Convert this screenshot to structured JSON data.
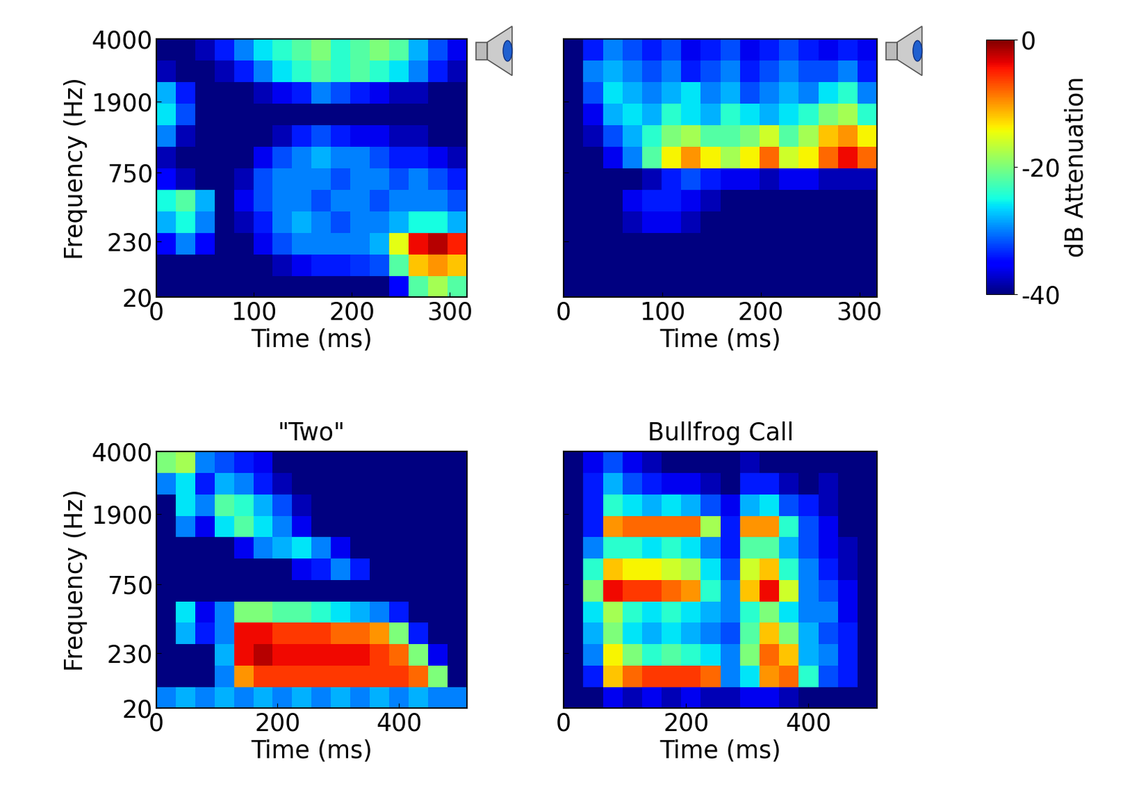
{
  "chart_data": [
    {
      "type": "heatmap",
      "x_label": "Time (ms)",
      "y_label": "Frequency (Hz)",
      "xlim": [
        0,
        318
      ],
      "ylim": [
        20,
        4000
      ],
      "xticks": [
        0,
        100,
        200,
        300
      ],
      "yticks": [
        20,
        230,
        750,
        1900,
        4000
      ],
      "cells": [
        [
          -40,
          -40,
          -40,
          -40,
          -40,
          -40,
          -40,
          -40,
          -40,
          -40,
          -40,
          -40,
          -35,
          -22,
          -18,
          -22
        ],
        [
          -40,
          -40,
          -40,
          -40,
          -40,
          -40,
          -38,
          -36,
          -34,
          -34,
          -33,
          -32,
          -22,
          -12,
          -10,
          -12
        ],
        [
          -35,
          -30,
          -35,
          -40,
          -40,
          -36,
          -32,
          -30,
          -30,
          -30,
          -30,
          -28,
          -15,
          -4,
          -2,
          -5
        ],
        [
          -28,
          -25,
          -30,
          -40,
          -38,
          -34,
          -30,
          -28,
          -30,
          -32,
          -30,
          -30,
          -28,
          -25,
          -25,
          -28
        ],
        [
          -25,
          -22,
          -28,
          -40,
          -36,
          -32,
          -30,
          -30,
          -32,
          -30,
          -30,
          -32,
          -30,
          -30,
          -30,
          -32
        ],
        [
          -35,
          -38,
          -40,
          -40,
          -38,
          -32,
          -30,
          -30,
          -30,
          -32,
          -30,
          -30,
          -32,
          -30,
          -32,
          -34
        ],
        [
          -38,
          -40,
          -40,
          -40,
          -40,
          -36,
          -32,
          -30,
          -28,
          -30,
          -30,
          -32,
          -34,
          -34,
          -36,
          -38
        ],
        [
          -30,
          -38,
          -40,
          -40,
          -40,
          -40,
          -38,
          -34,
          -32,
          -34,
          -36,
          -36,
          -38,
          -38,
          -40,
          -40
        ],
        [
          -26,
          -32,
          -40,
          -40,
          -40,
          -40,
          -40,
          -40,
          -40,
          -40,
          -40,
          -40,
          -40,
          -40,
          -40,
          -40
        ],
        [
          -28,
          -34,
          -40,
          -40,
          -40,
          -38,
          -36,
          -34,
          -30,
          -32,
          -34,
          -36,
          -38,
          -38,
          -40,
          -40
        ],
        [
          -38,
          -40,
          -40,
          -38,
          -34,
          -30,
          -26,
          -24,
          -22,
          -24,
          -22,
          -24,
          -26,
          -30,
          -34,
          -38
        ],
        [
          -40,
          -40,
          -38,
          -34,
          -30,
          -26,
          -24,
          -22,
          -20,
          -24,
          -22,
          -20,
          -22,
          -28,
          -32,
          -36
        ]
      ]
    },
    {
      "type": "heatmap",
      "x_label": "Time (ms)",
      "tick_labels": "x",
      "xlim": [
        0,
        318
      ],
      "ylim": [
        20,
        4000
      ],
      "xticks": [
        0,
        100,
        200,
        300
      ],
      "yticks": [
        20,
        230,
        750,
        1900,
        4000
      ],
      "cells": [
        [
          -40,
          -40,
          -40,
          -40,
          -40,
          -40,
          -40,
          -40,
          -40,
          -40,
          -40,
          -40,
          -40,
          -40,
          -40,
          -40
        ],
        [
          -40,
          -40,
          -40,
          -40,
          -40,
          -40,
          -40,
          -40,
          -40,
          -40,
          -40,
          -40,
          -40,
          -40,
          -40,
          -40
        ],
        [
          -40,
          -40,
          -40,
          -40,
          -40,
          -40,
          -40,
          -40,
          -40,
          -40,
          -40,
          -40,
          -40,
          -40,
          -40,
          -40
        ],
        [
          -40,
          -40,
          -40,
          -38,
          -36,
          -36,
          -38,
          -40,
          -40,
          -40,
          -40,
          -40,
          -40,
          -40,
          -40,
          -40
        ],
        [
          -40,
          -40,
          -40,
          -36,
          -34,
          -34,
          -36,
          -38,
          -40,
          -40,
          -40,
          -40,
          -40,
          -40,
          -40,
          -40
        ],
        [
          -40,
          -40,
          -40,
          -40,
          -38,
          -34,
          -32,
          -34,
          -36,
          -36,
          -38,
          -36,
          -36,
          -38,
          -38,
          -38
        ],
        [
          -40,
          -40,
          -36,
          -30,
          -22,
          -14,
          -10,
          -14,
          -18,
          -14,
          -8,
          -16,
          -14,
          -8,
          -4,
          -8
        ],
        [
          -40,
          -38,
          -32,
          -28,
          -24,
          -20,
          -18,
          -22,
          -22,
          -20,
          -16,
          -22,
          -18,
          -12,
          -10,
          -14
        ],
        [
          -40,
          -36,
          -28,
          -26,
          -28,
          -24,
          -26,
          -28,
          -24,
          -26,
          -28,
          -26,
          -24,
          -20,
          -18,
          -24
        ],
        [
          -40,
          -32,
          -26,
          -28,
          -30,
          -28,
          -26,
          -30,
          -28,
          -32,
          -30,
          -28,
          -30,
          -26,
          -24,
          -30
        ],
        [
          -40,
          -30,
          -28,
          -30,
          -32,
          -30,
          -34,
          -32,
          -30,
          -34,
          -32,
          -30,
          -32,
          -32,
          -30,
          -34
        ],
        [
          -40,
          -34,
          -30,
          -32,
          -34,
          -32,
          -36,
          -34,
          -32,
          -36,
          -34,
          -32,
          -34,
          -36,
          -34,
          -36
        ]
      ]
    },
    {
      "type": "heatmap",
      "title": "\"Two\"",
      "x_label": "Time (ms)",
      "y_label": "Frequency (Hz)",
      "xlim": [
        0,
        512
      ],
      "ylim": [
        20,
        4000
      ],
      "xticks": [
        0,
        200,
        400
      ],
      "yticks": [
        20,
        230,
        750,
        1900,
        4000
      ],
      "cells": [
        [
          -30,
          -28,
          -30,
          -28,
          -30,
          -28,
          -30,
          -28,
          -30,
          -28,
          -30,
          -28,
          -30,
          -28,
          -30,
          -30
        ],
        [
          -40,
          -40,
          -40,
          -30,
          -10,
          -6,
          -6,
          -6,
          -6,
          -6,
          -6,
          -6,
          -6,
          -8,
          -20,
          -40
        ],
        [
          -40,
          -40,
          -40,
          -28,
          -4,
          -2,
          -4,
          -4,
          -4,
          -4,
          -4,
          -6,
          -8,
          -20,
          -36,
          -40
        ],
        [
          -40,
          -28,
          -34,
          -30,
          -4,
          -4,
          -6,
          -6,
          -6,
          -8,
          -8,
          -10,
          -20,
          -34,
          -40,
          -40
        ],
        [
          -40,
          -26,
          -36,
          -30,
          -20,
          -20,
          -22,
          -22,
          -24,
          -26,
          -28,
          -30,
          -34,
          -40,
          -40,
          -40
        ],
        [
          -40,
          -40,
          -40,
          -40,
          -40,
          -40,
          -40,
          -40,
          -40,
          -40,
          -40,
          -40,
          -40,
          -40,
          -40,
          -40
        ],
        [
          -40,
          -40,
          -40,
          -40,
          -40,
          -40,
          -40,
          -36,
          -34,
          -30,
          -34,
          -40,
          -40,
          -40,
          -40,
          -40
        ],
        [
          -40,
          -40,
          -40,
          -40,
          -36,
          -30,
          -28,
          -26,
          -30,
          -36,
          -40,
          -40,
          -40,
          -40,
          -40,
          -40
        ],
        [
          -40,
          -30,
          -36,
          -26,
          -22,
          -26,
          -30,
          -36,
          -40,
          -40,
          -40,
          -40,
          -40,
          -40,
          -40,
          -40
        ],
        [
          -40,
          -26,
          -30,
          -22,
          -24,
          -28,
          -32,
          -38,
          -40,
          -40,
          -40,
          -40,
          -40,
          -40,
          -40,
          -40
        ],
        [
          -30,
          -26,
          -34,
          -28,
          -30,
          -34,
          -38,
          -40,
          -40,
          -40,
          -40,
          -40,
          -40,
          -40,
          -40,
          -40
        ],
        [
          -20,
          -18,
          -30,
          -32,
          -34,
          -36,
          -40,
          -40,
          -40,
          -40,
          -40,
          -40,
          -40,
          -40,
          -40,
          -40
        ]
      ]
    },
    {
      "type": "heatmap",
      "title": "Bullfrog Call",
      "x_label": "Time (ms)",
      "tick_labels": "x",
      "xlim": [
        0,
        512
      ],
      "ylim": [
        20,
        4000
      ],
      "xticks": [
        0,
        200,
        400
      ],
      "yticks": [
        20,
        230,
        750,
        1900,
        4000
      ],
      "cells": [
        [
          -40,
          -40,
          -36,
          -38,
          -36,
          -38,
          -36,
          -38,
          -38,
          -36,
          -36,
          -38,
          -40,
          -40,
          -40,
          -40
        ],
        [
          -40,
          -34,
          -12,
          -8,
          -6,
          -6,
          -6,
          -8,
          -30,
          -26,
          -10,
          -8,
          -24,
          -32,
          -34,
          -40
        ],
        [
          -40,
          -30,
          -14,
          -20,
          -24,
          -22,
          -24,
          -26,
          -30,
          -20,
          -8,
          -12,
          -28,
          -30,
          -34,
          -40
        ],
        [
          -40,
          -28,
          -20,
          -26,
          -28,
          -26,
          -28,
          -30,
          -32,
          -22,
          -12,
          -20,
          -28,
          -32,
          -34,
          -40
        ],
        [
          -40,
          -26,
          -18,
          -24,
          -26,
          -24,
          -26,
          -28,
          -30,
          -24,
          -20,
          -26,
          -30,
          -30,
          -36,
          -40
        ],
        [
          -40,
          -20,
          -4,
          -6,
          -6,
          -8,
          -10,
          -24,
          -30,
          -12,
          -4,
          -16,
          -30,
          -32,
          -36,
          -40
        ],
        [
          -40,
          -24,
          -12,
          -14,
          -14,
          -16,
          -18,
          -26,
          -32,
          -16,
          -12,
          -24,
          -30,
          -34,
          -38,
          -40
        ],
        [
          -40,
          -30,
          -24,
          -24,
          -26,
          -24,
          -26,
          -30,
          -34,
          -22,
          -22,
          -28,
          -32,
          -36,
          -38,
          -40
        ],
        [
          -40,
          -34,
          -10,
          -8,
          -8,
          -8,
          -8,
          -18,
          -34,
          -10,
          -10,
          -24,
          -32,
          -36,
          -40,
          -40
        ],
        [
          -40,
          -34,
          -24,
          -26,
          -28,
          -26,
          -28,
          -32,
          -36,
          -28,
          -26,
          -32,
          -34,
          -38,
          -40,
          -40
        ],
        [
          -40,
          -34,
          -28,
          -32,
          -34,
          -36,
          -36,
          -38,
          -40,
          -34,
          -34,
          -38,
          -40,
          -38,
          -40,
          -40
        ],
        [
          -40,
          -36,
          -32,
          -36,
          -38,
          -40,
          -40,
          -40,
          -40,
          -38,
          -40,
          -40,
          -40,
          -40,
          -40,
          -40
        ]
      ]
    }
  ],
  "colorbar": {
    "label": "dB Attenuation",
    "range": [
      -40,
      0
    ],
    "ticks": [
      0,
      -20,
      -40
    ]
  }
}
